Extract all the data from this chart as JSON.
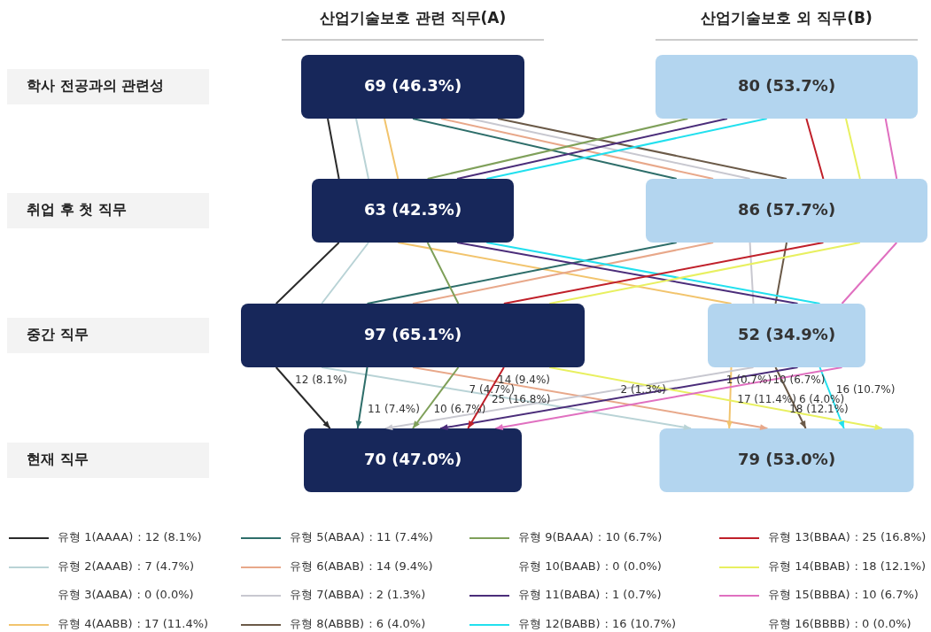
{
  "chart_data": {
    "type": "other",
    "categories": [
      "유형 1(AAAA)",
      "유형 2(AAAB)",
      "유형 3(AABA)",
      "유형 4(AABB)",
      "유형 5(ABAA)",
      "유형 6(ABAB)",
      "유형 7(ABBA)",
      "유형 8(ABBB)",
      "유형 9(BAAA)",
      "유형 10(BAAB)",
      "유형 11(BABA)",
      "유형 12(BABB)",
      "유형 13(BBAA)",
      "유형 14(BBAB)",
      "유형 15(BBBA)",
      "유형 16(BBBB)"
    ],
    "values": [
      12,
      7,
      0,
      17,
      11,
      14,
      2,
      6,
      10,
      0,
      1,
      16,
      25,
      18,
      10,
      0
    ],
    "value_labels": [
      ": 12 (8.1%)",
      ": 7 (4.7%)",
      ": 0 (0.0%)",
      ": 17 (11.4%)",
      ": 11 (7.4%)",
      ": 14 (9.4%)",
      ": 2 (1.3%)",
      ": 6 (4.0%)",
      ": 10 (6.7%)",
      ": 0 (0.0%)",
      ": 1 (0.7%)",
      ": 16 (10.7%)",
      ": 25 (16.8%)",
      ": 18 (12.1%)",
      ": 10 (6.7%)",
      ": 0 (0.0%)"
    ],
    "colors": [
      "#2b2b2b",
      "#b9d3d6",
      null,
      "#f2c46d",
      "#2e6e6a",
      "#e8a88a",
      "#c8c8d0",
      "#6b5a48",
      "#7fa05a",
      null,
      "#4b2d7a",
      "#22e0ee",
      "#c0202a",
      "#e8f060",
      "#e070c0",
      null
    ],
    "annotations": [
      "산업기술보호 관련 직무(A)",
      "산업기술보호 외 직무(B)",
      "학사 전공과의 관련성",
      "취업 후 첫 직무",
      "중간 직무",
      "현재 직무",
      "69 (46.3%)",
      "80 (53.7%)",
      "63 (42.3%)",
      "86 (57.7%)",
      "97 (65.1%)",
      "52 (34.9%)",
      "70 (47.0%)",
      "79 (53.0%)",
      "12 (8.1%)",
      "7 (4.7%)",
      "17 (11.4%)",
      "11 (7.4%)",
      "14 (9.4%)",
      "2 (1.3%)",
      "6 (4.0%)",
      "10 (6.7%)",
      "1 (0.7%)",
      "16 (10.7%)",
      "25 (16.8%)",
      "18 (12.1%)",
      "10 (6.7%)"
    ]
  }
}
